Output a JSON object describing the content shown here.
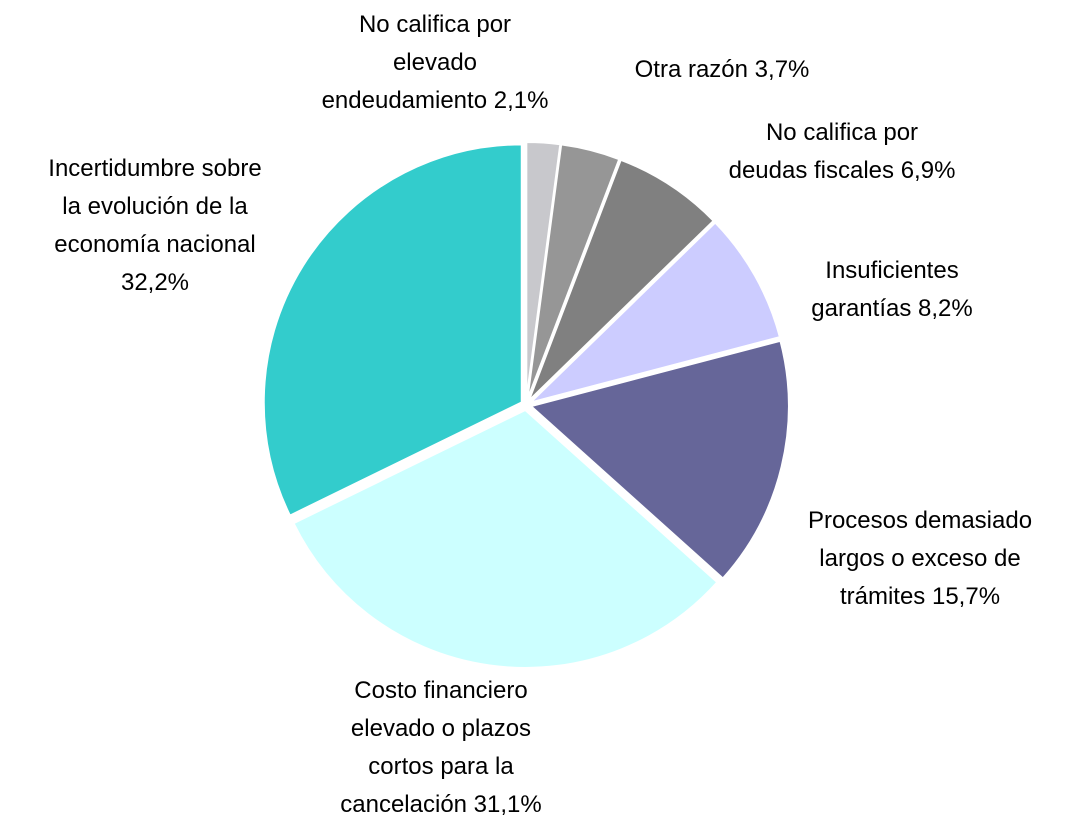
{
  "chart_data": {
    "type": "pie",
    "categories": [
      "No califica por elevado endeudamiento",
      "Otra razón",
      "No califica por deudas fiscales",
      "Insuficientes garantías",
      "Procesos demasiado largos o exceso de trámites",
      "Costo financiero elevado o plazos cortos para la cancelación",
      "Incertidumbre sobre la evolución de la economía nacional"
    ],
    "values": [
      2.1,
      3.7,
      6.9,
      8.2,
      15.7,
      31.1,
      32.2
    ],
    "value_labels": [
      "2,1%",
      "3,7%",
      "6,9%",
      "8,2%",
      "15,7%",
      "31,1%",
      "32,2%"
    ],
    "colors": [
      "#c8c8cc",
      "#969696",
      "#808080",
      "#ccccff",
      "#666699",
      "#ccffff",
      "#33cccc"
    ]
  }
}
